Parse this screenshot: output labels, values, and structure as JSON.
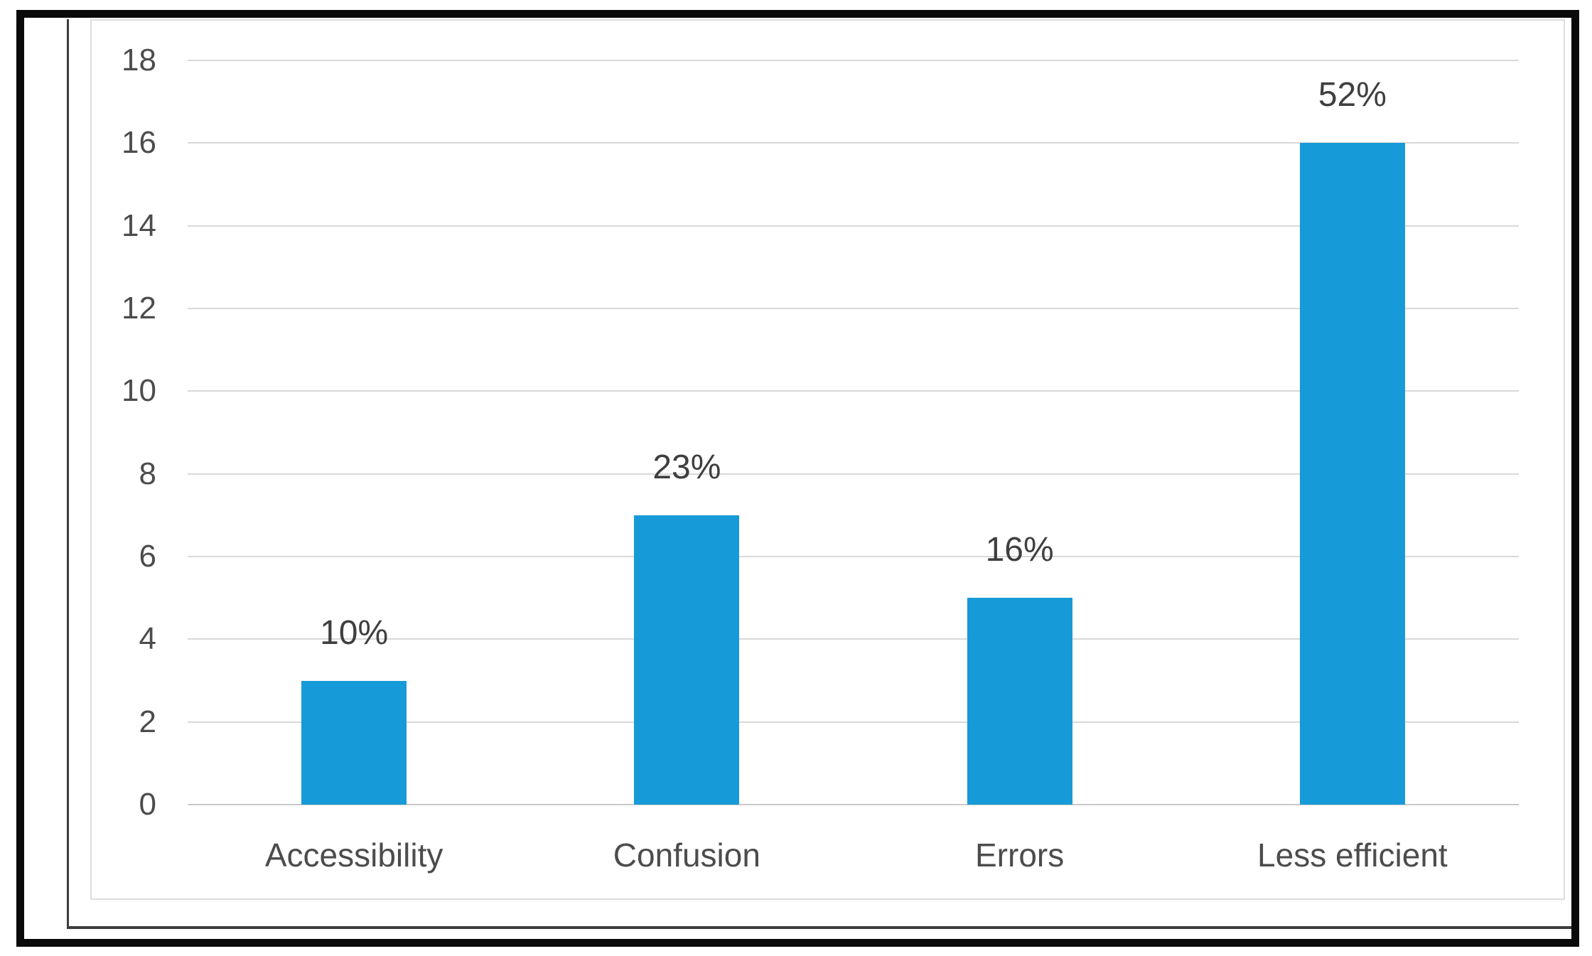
{
  "chart_data": {
    "type": "bar",
    "title": "",
    "xlabel": "",
    "ylabel": "",
    "categories": [
      "Accessibility",
      "Confusion",
      "Errors",
      "Less efficient"
    ],
    "values": [
      3,
      7,
      5,
      16
    ],
    "data_labels": [
      "10%",
      "23%",
      "16%",
      "52%"
    ],
    "ylim": [
      0,
      18
    ],
    "yticks": [
      0,
      2,
      4,
      6,
      8,
      10,
      12,
      14,
      16,
      18
    ],
    "grid": true,
    "legend": false,
    "colors": {
      "bar": "#179ad8",
      "gridline": "#d9d9d9",
      "axis_line": "#c9c9c9",
      "tick_text": "#4c4c4c",
      "category_text": "#4c4c4c",
      "data_label_text": "#3f3f3f",
      "chart_frame_border": "#dcdcdc",
      "page_edge": "#3d3d3d",
      "outer_frame": "#0a0a0a"
    }
  }
}
